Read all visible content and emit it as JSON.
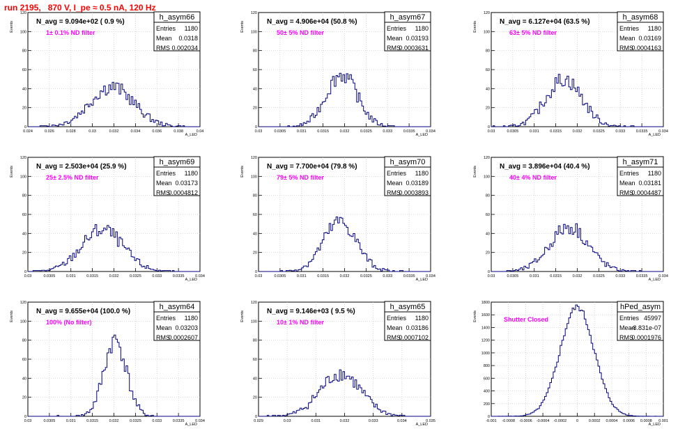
{
  "header": {
    "run_label": "run 2195,   870 V, I_pe ≈ 0.5 nA, 120 Hz"
  },
  "colors": {
    "histogram": "#000080",
    "annotation": "#ff00ff",
    "title": "#ff0000",
    "grid": "#c8c8c8"
  },
  "chart_data": [
    {
      "type": "bar",
      "name": "h_asym66",
      "navg": "N_avg = 9.094e+02 ( 0.9 %)",
      "filter": "1± 0.1% ND filter",
      "stats": {
        "Entries": "1180",
        "Mean": "0.0318",
        "RMS": "0.002034"
      },
      "ylabel": "Events",
      "xlabel": "A_LED",
      "xlim": [
        0.024,
        0.04
      ],
      "ylim": [
        0,
        120
      ],
      "yticks": [
        "0",
        "20",
        "40",
        "60",
        "80",
        "100",
        "120"
      ],
      "xticks": [
        "0.024",
        "0.026",
        "0.028",
        "0.03",
        "0.032",
        "0.034",
        "0.036",
        "0.038",
        "0.04"
      ],
      "mean": 0.0318,
      "rms": 0.002034,
      "peak": 42,
      "nbins": 100
    },
    {
      "type": "bar",
      "name": "h_asym67",
      "navg": "N_avg = 4.906e+04 (50.8 %)",
      "filter": "50± 5% ND filter",
      "stats": {
        "Entries": "1180",
        "Mean": "0.03193",
        "RMS": "0.0003631"
      },
      "ylabel": "Events",
      "xlabel": "A_LED",
      "xlim": [
        0.03,
        0.034
      ],
      "ylim": [
        0,
        120
      ],
      "yticks": [
        "0",
        "20",
        "40",
        "60",
        "80",
        "100",
        "120"
      ],
      "xticks": [
        "0.03",
        "0.0305",
        "0.031",
        "0.0315",
        "0.032",
        "0.0325",
        "0.033",
        "0.0335",
        "0.034"
      ],
      "mean": 0.03193,
      "rms": 0.0003631,
      "peak": 55,
      "nbins": 100
    },
    {
      "type": "bar",
      "name": "h_asym68",
      "navg": "N_avg = 6.127e+04 (63.5 %)",
      "filter": "63± 5% ND filter",
      "stats": {
        "Entries": "1180",
        "Mean": "0.03169",
        "RMS": "0.0004163"
      },
      "ylabel": "Events",
      "xlabel": "A_LED",
      "xlim": [
        0.03,
        0.034
      ],
      "ylim": [
        0,
        120
      ],
      "yticks": [
        "0",
        "20",
        "40",
        "60",
        "80",
        "100",
        "120"
      ],
      "xticks": [
        "0.03",
        "0.0305",
        "0.031",
        "0.0315",
        "0.032",
        "0.0325",
        "0.033",
        "0.0335",
        "0.034"
      ],
      "mean": 0.03169,
      "rms": 0.0004163,
      "peak": 50,
      "nbins": 100
    },
    {
      "type": "bar",
      "name": "h_asym69",
      "navg": "N_avg = 2.503e+04 (25.9 %)",
      "filter": "25± 2.5% ND filter",
      "stats": {
        "Entries": "1180",
        "Mean": "0.03173",
        "RMS": "0.0004812"
      },
      "ylabel": "Events",
      "xlabel": "A_LED",
      "xlim": [
        0.03,
        0.034
      ],
      "ylim": [
        0,
        120
      ],
      "yticks": [
        "0",
        "20",
        "40",
        "60",
        "80",
        "100",
        "120"
      ],
      "xticks": [
        "0.03",
        "0.0305",
        "0.031",
        "0.0315",
        "0.032",
        "0.0325",
        "0.033",
        "0.0335",
        "0.034"
      ],
      "mean": 0.03173,
      "rms": 0.0004812,
      "peak": 44,
      "nbins": 100
    },
    {
      "type": "bar",
      "name": "h_asym70",
      "navg": "N_avg = 7.700e+04 (79.8 %)",
      "filter": "79± 5% ND filter",
      "stats": {
        "Entries": "1180",
        "Mean": "0.03189",
        "RMS": "0.0003893"
      },
      "ylabel": "Events",
      "xlabel": "A_LED",
      "xlim": [
        0.03,
        0.034
      ],
      "ylim": [
        0,
        120
      ],
      "yticks": [
        "0",
        "20",
        "40",
        "60",
        "80",
        "100",
        "120"
      ],
      "xticks": [
        "0.03",
        "0.0305",
        "0.031",
        "0.0315",
        "0.032",
        "0.0325",
        "0.033",
        "0.0335",
        "0.034"
      ],
      "mean": 0.03189,
      "rms": 0.0003893,
      "peak": 52,
      "nbins": 100
    },
    {
      "type": "bar",
      "name": "h_asym71",
      "navg": "N_avg = 3.896e+04 (40.4 %)",
      "filter": "40± 4% ND filter",
      "stats": {
        "Entries": "1180",
        "Mean": "0.03181",
        "RMS": "0.0004487"
      },
      "ylabel": "Events",
      "xlabel": "A_LED",
      "xlim": [
        0.03,
        0.034
      ],
      "ylim": [
        0,
        120
      ],
      "yticks": [
        "0",
        "20",
        "40",
        "60",
        "80",
        "100",
        "120"
      ],
      "xticks": [
        "0.03",
        "0.0305",
        "0.031",
        "0.0315",
        "0.032",
        "0.0325",
        "0.033",
        "0.0335",
        "0.034"
      ],
      "mean": 0.03181,
      "rms": 0.0004487,
      "peak": 47,
      "nbins": 100
    },
    {
      "type": "bar",
      "name": "h_asym64",
      "navg": "N_avg = 9.655e+04 (100.0 %)",
      "filter": "100% (No filter)",
      "stats": {
        "Entries": "1180",
        "Mean": "0.03203",
        "RMS": "0.0002607"
      },
      "ylabel": "Events",
      "xlabel": "A_LED",
      "xlim": [
        0.03,
        0.034
      ],
      "ylim": [
        0,
        120
      ],
      "yticks": [
        "0",
        "20",
        "40",
        "60",
        "80",
        "100",
        "120"
      ],
      "xticks": [
        "0.03",
        "0.0305",
        "0.031",
        "0.0315",
        "0.032",
        "0.0325",
        "0.033",
        "0.0335",
        "0.034"
      ],
      "mean": 0.03203,
      "rms": 0.0002607,
      "peak": 80,
      "nbins": 100
    },
    {
      "type": "bar",
      "name": "h_asym65",
      "navg": "N_avg = 9.146e+03 ( 9.5 %)",
      "filter": "10± 1% ND filter",
      "stats": {
        "Entries": "1180",
        "Mean": "0.03186",
        "RMS": "0.0007102"
      },
      "ylabel": "Events",
      "xlabel": "A_LED",
      "xlim": [
        0.029,
        0.035
      ],
      "ylim": [
        0,
        120
      ],
      "yticks": [
        "0",
        "20",
        "40",
        "60",
        "80",
        "100",
        "120"
      ],
      "xticks": [
        "0.029",
        "0.03",
        "0.031",
        "0.032",
        "0.033",
        "0.034",
        "0.035"
      ],
      "mean": 0.03186,
      "rms": 0.0007102,
      "peak": 45,
      "nbins": 100
    },
    {
      "type": "bar",
      "name": "hPed_asym",
      "navg": "",
      "filter": "Shutter Closed",
      "stats": {
        "Entries": "45997",
        "Mean": "-8.831e-07",
        "RMS": "0.0001976"
      },
      "ylabel": "Events",
      "xlabel": "A_LED",
      "xlim": [
        -0.001,
        0.001
      ],
      "ylim": [
        0,
        1800
      ],
      "yticks": [
        "0",
        "200",
        "400",
        "600",
        "800",
        "1000",
        "1200",
        "1400",
        "1600",
        "1800"
      ],
      "xticks": [
        "-0.001",
        "-0.0008",
        "-0.0006",
        "-0.0004",
        "-0.0002",
        "0",
        "0.0002",
        "0.0004",
        "0.0006",
        "0.0008",
        "0.001"
      ],
      "mean": -8.831e-07,
      "rms": 0.0001976,
      "peak": 1720,
      "nbins": 100
    }
  ]
}
